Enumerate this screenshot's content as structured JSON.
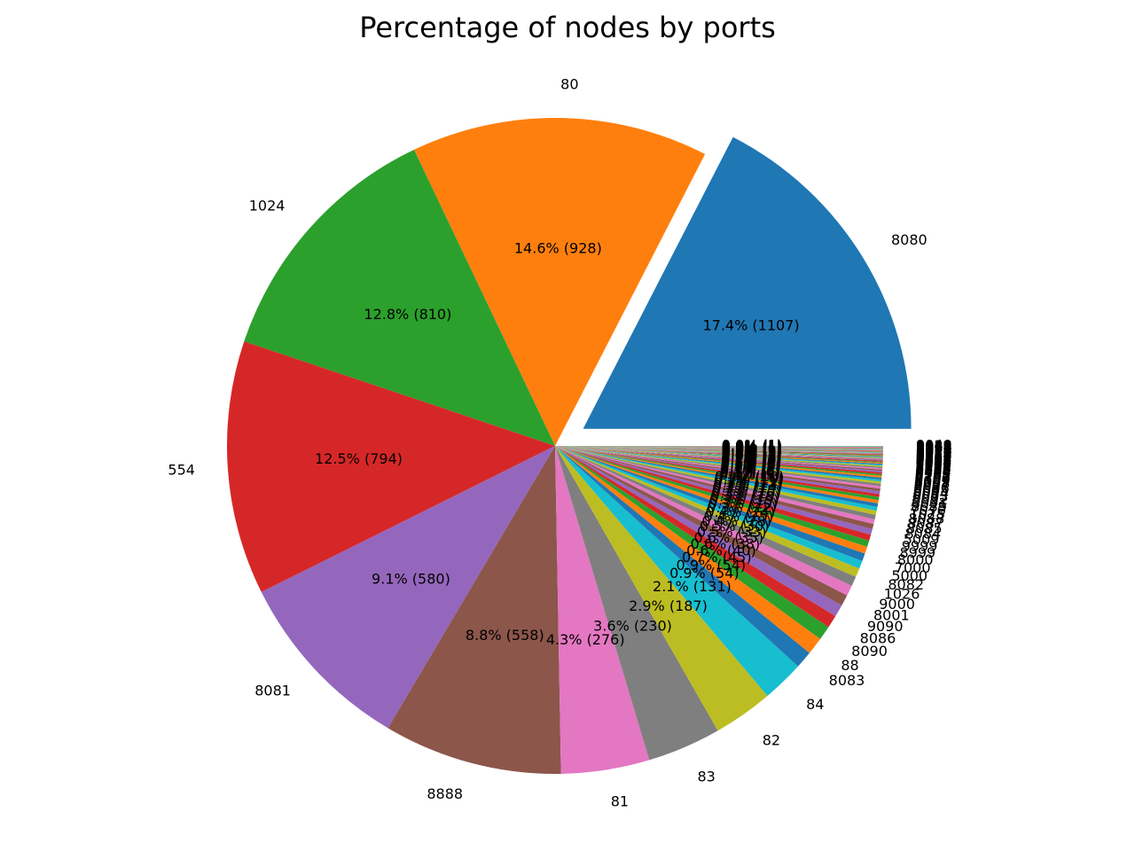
{
  "chart_data": {
    "type": "pie",
    "title": "Percentage of nodes by ports",
    "startangle_deg": 0,
    "direction": "counterclockwise",
    "exploded": [
      "8080"
    ],
    "pct_label_format": "{pct}% ({count})",
    "slices": [
      {
        "label": "8080",
        "count": 1107,
        "color": "#1f77b4"
      },
      {
        "label": "80",
        "count": 928,
        "color": "#ff7f0e"
      },
      {
        "label": "1024",
        "count": 810,
        "color": "#2ca02c"
      },
      {
        "label": "554",
        "count": 794,
        "color": "#d62728"
      },
      {
        "label": "8081",
        "count": 580,
        "color": "#9467bd"
      },
      {
        "label": "8888",
        "count": 558,
        "color": "#8c564b"
      },
      {
        "label": "81",
        "count": 276,
        "color": "#e377c2"
      },
      {
        "label": "83",
        "count": 230,
        "color": "#7f7f7f"
      },
      {
        "label": "82",
        "count": 187,
        "color": "#bcbd22"
      },
      {
        "label": "84",
        "count": 131,
        "color": "#17becf"
      },
      {
        "label": "8083",
        "count": 54,
        "color": "#1f77b4"
      },
      {
        "label": "88",
        "count": 54,
        "color": "#ff7f0e"
      },
      {
        "label": "8090",
        "count": 45,
        "color": "#2ca02c"
      },
      {
        "label": "8086",
        "count": 40,
        "color": "#d62728"
      },
      {
        "label": "9090",
        "count": 38,
        "color": "#9467bd"
      },
      {
        "label": "8001",
        "count": 35,
        "color": "#8c564b"
      },
      {
        "label": "9000",
        "count": 33,
        "color": "#e377c2"
      },
      {
        "label": "1026",
        "count": 30,
        "color": "#7f7f7f"
      },
      {
        "label": "8082",
        "count": 28,
        "color": "#bcbd22"
      },
      {
        "label": "5000",
        "count": 25,
        "color": "#17becf"
      },
      {
        "label": "7000",
        "count": 24,
        "color": "#1f77b4"
      },
      {
        "label": "8000",
        "count": 22,
        "color": "#ff7f0e"
      },
      {
        "label": "8999",
        "count": 20,
        "color": "#2ca02c"
      },
      {
        "label": "9999",
        "count": 19,
        "color": "#d62728"
      },
      {
        "label": "5009",
        "count": 18,
        "color": "#9467bd"
      },
      {
        "label": "8084",
        "count": 16,
        "color": "#8c564b"
      },
      {
        "label": "8085",
        "count": 15,
        "color": "#e377c2"
      },
      {
        "label": "8087",
        "count": 14,
        "color": "#7f7f7f"
      },
      {
        "label": "8088",
        "count": 13,
        "color": "#bcbd22"
      },
      {
        "label": "1025",
        "count": 12,
        "color": "#17becf"
      },
      {
        "label": "7070",
        "count": 11,
        "color": "#1f77b4"
      },
      {
        "label": "8089",
        "count": 10,
        "color": "#ff7f0e"
      },
      {
        "label": "8091",
        "count": 10,
        "color": "#2ca02c"
      },
      {
        "label": "8092",
        "count": 9,
        "color": "#d62728"
      },
      {
        "label": "8093",
        "count": 9,
        "color": "#9467bd"
      },
      {
        "label": "8094",
        "count": 8,
        "color": "#8c564b"
      },
      {
        "label": "8095",
        "count": 8,
        "color": "#e377c2"
      },
      {
        "label": "8096",
        "count": 7,
        "color": "#7f7f7f"
      },
      {
        "label": "8097",
        "count": 7,
        "color": "#bcbd22"
      },
      {
        "label": "8098",
        "count": 6,
        "color": "#17becf"
      },
      {
        "label": "8099",
        "count": 6,
        "color": "#1f77b4"
      },
      {
        "label": "8100",
        "count": 6,
        "color": "#ff7f0e"
      },
      {
        "label": "8181",
        "count": 5,
        "color": "#2ca02c"
      },
      {
        "label": "8282",
        "count": 5,
        "color": "#d62728"
      },
      {
        "label": "8383",
        "count": 5,
        "color": "#9467bd"
      },
      {
        "label": "8484",
        "count": 4,
        "color": "#8c564b"
      },
      {
        "label": "8585",
        "count": 4,
        "color": "#e377c2"
      },
      {
        "label": "8686",
        "count": 4,
        "color": "#7f7f7f"
      },
      {
        "label": "8787",
        "count": 4,
        "color": "#bcbd22"
      },
      {
        "label": "8989",
        "count": 3,
        "color": "#17becf"
      },
      {
        "label": "9001",
        "count": 3,
        "color": "#1f77b4"
      },
      {
        "label": "9002",
        "count": 3,
        "color": "#ff7f0e"
      },
      {
        "label": "9003",
        "count": 3,
        "color": "#2ca02c"
      },
      {
        "label": "9004",
        "count": 3,
        "color": "#d62728"
      },
      {
        "label": "9005",
        "count": 2,
        "color": "#9467bd"
      },
      {
        "label": "9006",
        "count": 2,
        "color": "#8c564b"
      },
      {
        "label": "9007",
        "count": 2,
        "color": "#e377c2"
      },
      {
        "label": "9008",
        "count": 2,
        "color": "#7f7f7f"
      },
      {
        "label": "9009",
        "count": 2,
        "color": "#bcbd22"
      },
      {
        "label": "9010",
        "count": 2,
        "color": "#17becf"
      },
      {
        "label": "9011",
        "count": 2,
        "color": "#1f77b4"
      },
      {
        "label": "9012",
        "count": 2,
        "color": "#ff7f0e"
      },
      {
        "label": "9013",
        "count": 2,
        "color": "#2ca02c"
      },
      {
        "label": "9014",
        "count": 2,
        "color": "#d62728"
      },
      {
        "label": "9015",
        "count": 1,
        "color": "#9467bd"
      },
      {
        "label": "9016",
        "count": 1,
        "color": "#8c564b"
      },
      {
        "label": "9017",
        "count": 1,
        "color": "#e377c2"
      },
      {
        "label": "9018",
        "count": 1,
        "color": "#7f7f7f"
      },
      {
        "label": "9019",
        "count": 1,
        "color": "#bcbd22"
      },
      {
        "label": "9020",
        "count": 1,
        "color": "#17becf"
      },
      {
        "label": "9021",
        "count": 1,
        "color": "#1f77b4"
      },
      {
        "label": "9022",
        "count": 1,
        "color": "#ff7f0e"
      },
      {
        "label": "9023",
        "count": 1,
        "color": "#2ca02c"
      },
      {
        "label": "9024",
        "count": 1,
        "color": "#d62728"
      },
      {
        "label": "9025",
        "count": 1,
        "color": "#9467bd"
      },
      {
        "label": "9026",
        "count": 1,
        "color": "#8c564b"
      },
      {
        "label": "9027",
        "count": 1,
        "color": "#e377c2"
      },
      {
        "label": "9028",
        "count": 1,
        "color": "#7f7f7f"
      },
      {
        "label": "9029",
        "count": 1,
        "color": "#bcbd22"
      },
      {
        "label": "9030",
        "count": 1,
        "color": "#17becf"
      },
      {
        "label": "9031",
        "count": 1,
        "color": "#1f77b4"
      },
      {
        "label": "9032",
        "count": 1,
        "color": "#ff7f0e"
      },
      {
        "label": "9033",
        "count": 1,
        "color": "#2ca02c"
      },
      {
        "label": "9034",
        "count": 1,
        "color": "#d62728"
      },
      {
        "label": "9035",
        "count": 1,
        "color": "#9467bd"
      },
      {
        "label": "9036",
        "count": 1,
        "color": "#8c564b"
      },
      {
        "label": "9037",
        "count": 1,
        "color": "#e377c2"
      },
      {
        "label": "9038",
        "count": 1,
        "color": "#7f7f7f"
      },
      {
        "label": "9039",
        "count": 1,
        "color": "#bcbd22"
      },
      {
        "label": "9040",
        "count": 1,
        "color": "#17becf"
      }
    ]
  }
}
